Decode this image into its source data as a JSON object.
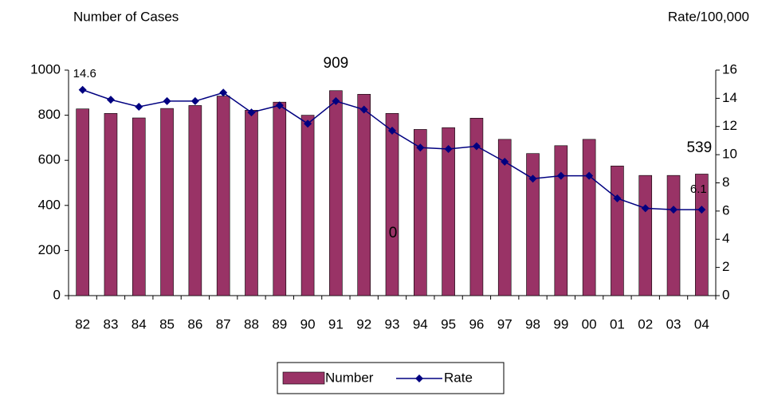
{
  "chart_data": {
    "type": "bar_line",
    "y_label": "Number of Cases",
    "y2_label": "Rate/100,000",
    "categories": [
      "82",
      "83",
      "84",
      "85",
      "86",
      "87",
      "88",
      "89",
      "90",
      "91",
      "92",
      "93",
      "94",
      "95",
      "96",
      "97",
      "98",
      "99",
      "00",
      "01",
      "02",
      "03",
      "04"
    ],
    "series": [
      {
        "name": "Number",
        "type": "bar",
        "color": "#993366",
        "values": [
          828,
          808,
          788,
          830,
          843,
          885,
          822,
          858,
          800,
          909,
          893,
          808,
          737,
          745,
          787,
          693,
          630,
          665,
          693,
          575,
          533,
          533,
          539
        ]
      },
      {
        "name": "Rate",
        "type": "line",
        "axis": "y2",
        "color": "#000080",
        "values": [
          14.6,
          13.9,
          13.4,
          13.8,
          13.8,
          14.4,
          13.0,
          13.5,
          12.2,
          13.8,
          13.2,
          11.7,
          10.5,
          10.4,
          10.6,
          9.5,
          8.3,
          8.5,
          8.5,
          6.9,
          6.2,
          6.1,
          6.1
        ]
      }
    ],
    "ylim": [
      0,
      1000
    ],
    "yticks": [
      0,
      200,
      400,
      600,
      800,
      1000
    ],
    "y2lim": [
      0,
      16
    ],
    "y2ticks": [
      0,
      2,
      4,
      6,
      8,
      10,
      12,
      14,
      16
    ],
    "annotations": [
      "0"
    ],
    "legend": "bottom"
  }
}
